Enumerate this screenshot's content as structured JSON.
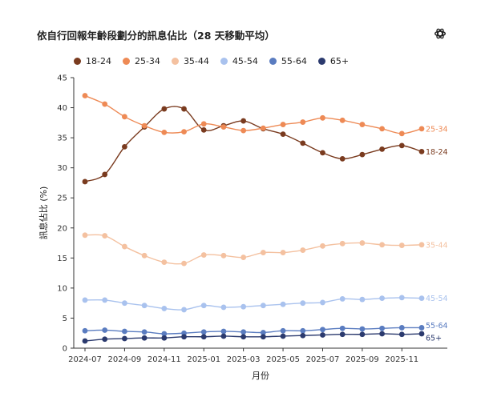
{
  "chart_data": {
    "type": "line",
    "title": "依自行回報年齡段劃分的訊息佔比（28 天移動平均）",
    "xlabel": "月份",
    "ylabel": "訊息佔比 (%)",
    "ylim": [
      0,
      45
    ],
    "yticks": [
      0,
      5,
      10,
      15,
      20,
      25,
      30,
      35,
      40,
      45
    ],
    "x": [
      "2024-07",
      "2024-08",
      "2024-09",
      "2024-10",
      "2024-11",
      "2024-12",
      "2025-01",
      "2025-02",
      "2025-03",
      "2025-04",
      "2025-05",
      "2025-06",
      "2025-07",
      "2025-08",
      "2025-09",
      "2025-10",
      "2025-11",
      "2025-12"
    ],
    "xticks": [
      "2024-07",
      "2024-09",
      "2024-11",
      "2025-01",
      "2025-03",
      "2025-05",
      "2025-07",
      "2025-09",
      "2025-11"
    ],
    "series": [
      {
        "name": "18-24",
        "color": "#7a3b1f",
        "end_label": "18-24",
        "values": [
          27.7,
          28.9,
          33.5,
          36.8,
          39.8,
          39.8,
          36.3,
          37.0,
          37.8,
          36.5,
          35.6,
          34.1,
          32.5,
          31.5,
          32.2,
          33.1,
          33.7,
          32.7
        ]
      },
      {
        "name": "25-34",
        "color": "#ee8a55",
        "end_label": "25-34",
        "values": [
          42.0,
          40.6,
          38.5,
          37.0,
          35.9,
          36.0,
          37.3,
          36.8,
          36.2,
          36.6,
          37.2,
          37.6,
          38.3,
          37.9,
          37.2,
          36.5,
          35.7,
          36.5
        ]
      },
      {
        "name": "35-44",
        "color": "#f4c1a0",
        "end_label": "35-44",
        "values": [
          18.8,
          18.7,
          16.9,
          15.4,
          14.3,
          14.1,
          15.5,
          15.4,
          15.1,
          15.9,
          15.9,
          16.3,
          17.0,
          17.4,
          17.5,
          17.2,
          17.1,
          17.2
        ]
      },
      {
        "name": "45-54",
        "color": "#a9c2ee",
        "end_label": "45-54",
        "values": [
          8.0,
          8.0,
          7.5,
          7.1,
          6.6,
          6.4,
          7.1,
          6.8,
          6.9,
          7.1,
          7.3,
          7.5,
          7.6,
          8.2,
          8.1,
          8.3,
          8.4,
          8.3
        ]
      },
      {
        "name": "55-64",
        "color": "#5a7cc0",
        "end_label": "55-64",
        "values": [
          2.9,
          3.0,
          2.8,
          2.7,
          2.4,
          2.5,
          2.7,
          2.8,
          2.7,
          2.6,
          2.9,
          2.9,
          3.1,
          3.3,
          3.2,
          3.3,
          3.4,
          3.4
        ]
      },
      {
        "name": "65+",
        "color": "#2b3a6e",
        "end_label": "65+",
        "values": [
          1.2,
          1.5,
          1.6,
          1.7,
          1.7,
          1.9,
          1.9,
          2.0,
          1.9,
          1.9,
          2.0,
          2.1,
          2.2,
          2.3,
          2.3,
          2.4,
          2.3,
          2.4
        ]
      }
    ],
    "legend_position": "top-left",
    "grid": false
  }
}
